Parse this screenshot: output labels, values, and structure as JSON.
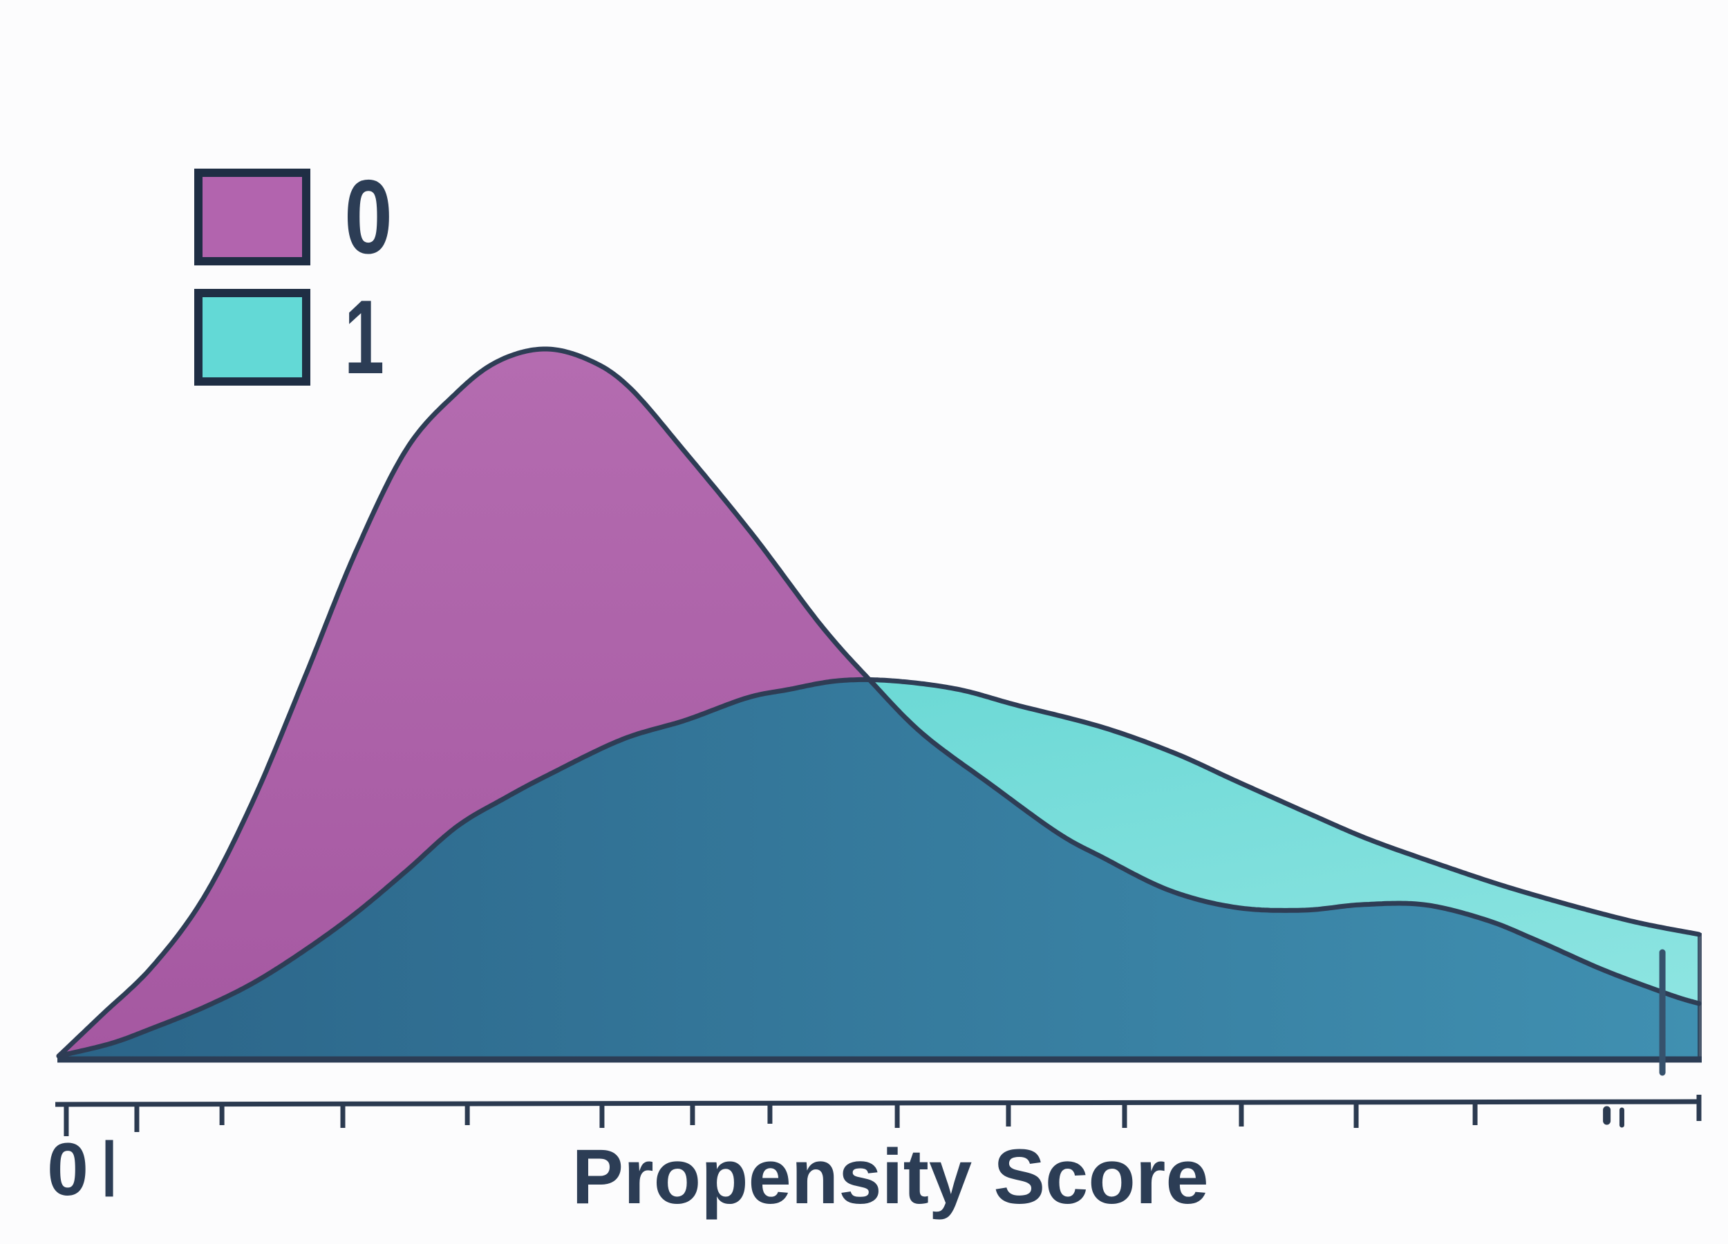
{
  "figure": {
    "background": "#fcfcfd",
    "ink": "#2c3d55",
    "axis_color": "#2b3a50"
  },
  "legend": {
    "position": "upper-left",
    "entries": [
      {
        "label": "0",
        "color": "#b264ae",
        "border": "#1f2e44"
      },
      {
        "label": "1",
        "color": "#63d9d6",
        "border": "#1f2e44"
      }
    ]
  },
  "x_axis": {
    "label": "Propensity Score",
    "first_tick_label": "0",
    "first_tick_label_bar": "|"
  },
  "chart_data": {
    "type": "area",
    "subtype": "kde-density",
    "title": "",
    "xlabel": "Propensity Score",
    "ylabel": "",
    "grid": false,
    "legend_position": "upper-left",
    "visible_x_tick_labels": [
      "0"
    ],
    "x_range_normalized": [
      0,
      1
    ],
    "density_range_normalized": [
      0,
      1
    ],
    "axis_ticks_x": [
      0.0046,
      0.0476,
      0.0995,
      0.1732,
      0.2491,
      0.3312,
      0.3864,
      0.4336,
      0.5112,
      0.579,
      0.6498,
      0.721,
      0.791,
      0.8635,
      1.0
    ],
    "minor_marks_x": [
      0.9438,
      0.953
    ],
    "rug_marker_x": 0.9777,
    "overlap_fill": {
      "from": "#2b6488",
      "to": "#4090b1"
    },
    "series": [
      {
        "name": "0",
        "fill_from": "#b46cb0",
        "fill_to": "#a558a1",
        "stroke": "#2e3d55",
        "points": [
          [
            0.0,
            0.0049
          ],
          [
            0.0261,
            0.0623
          ],
          [
            0.0569,
            0.1304
          ],
          [
            0.0881,
            0.2267
          ],
          [
            0.1188,
            0.3658
          ],
          [
            0.15,
            0.5379
          ],
          [
            0.1808,
            0.713
          ],
          [
            0.212,
            0.8589
          ],
          [
            0.2427,
            0.9387
          ],
          [
            0.2676,
            0.9825
          ],
          [
            0.2954,
            1.0
          ],
          [
            0.3224,
            0.9854
          ],
          [
            0.3477,
            0.9465
          ],
          [
            0.3822,
            0.8541
          ],
          [
            0.4235,
            0.7374
          ],
          [
            0.4648,
            0.6109
          ],
          [
            0.496,
            0.5302
          ],
          [
            0.5268,
            0.4582
          ],
          [
            0.5681,
            0.3872
          ],
          [
            0.6089,
            0.3191
          ],
          [
            0.6359,
            0.285
          ],
          [
            0.6768,
            0.2383
          ],
          [
            0.7177,
            0.214
          ],
          [
            0.7585,
            0.2101
          ],
          [
            0.7943,
            0.2179
          ],
          [
            0.8322,
            0.2179
          ],
          [
            0.8701,
            0.1965
          ],
          [
            0.9014,
            0.1673
          ],
          [
            0.9423,
            0.1255
          ],
          [
            0.9831,
            0.0905
          ],
          [
            1.0,
            0.0788
          ]
        ]
      },
      {
        "name": "1",
        "fill_from": "#62d5d2",
        "fill_to": "#8ce4e1",
        "stroke": "#2e3d55",
        "points": [
          [
            0.0,
            0.0049
          ],
          [
            0.0316,
            0.0224
          ],
          [
            0.0569,
            0.0438
          ],
          [
            0.0881,
            0.073
          ],
          [
            0.1188,
            0.108
          ],
          [
            0.15,
            0.1537
          ],
          [
            0.1808,
            0.2053
          ],
          [
            0.212,
            0.2656
          ],
          [
            0.2427,
            0.3278
          ],
          [
            0.2718,
            0.3677
          ],
          [
            0.2996,
            0.4018
          ],
          [
            0.3434,
            0.4504
          ],
          [
            0.3822,
            0.4776
          ],
          [
            0.4193,
            0.5088
          ],
          [
            0.4442,
            0.5204
          ],
          [
            0.4753,
            0.5331
          ],
          [
            0.5078,
            0.5331
          ],
          [
            0.5474,
            0.5214
          ],
          [
            0.5836,
            0.499
          ],
          [
            0.6359,
            0.4679
          ],
          [
            0.6806,
            0.4309
          ],
          [
            0.7177,
            0.392
          ],
          [
            0.7649,
            0.3434
          ],
          [
            0.7994,
            0.3093
          ],
          [
            0.8407,
            0.2753
          ],
          [
            0.8812,
            0.2442
          ],
          [
            0.925,
            0.215
          ],
          [
            0.9629,
            0.1926
          ],
          [
            1.0,
            0.1761
          ]
        ]
      }
    ]
  }
}
